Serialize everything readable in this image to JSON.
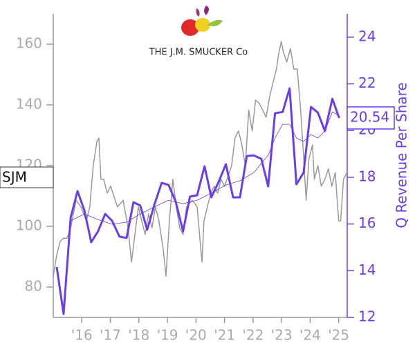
{
  "chart_data": {
    "type": "line",
    "logo": "THE J.M. SMUCKER Co",
    "y2label": "Q Revenue Per Share",
    "xlim": [
      2015.0,
      2025.3
    ],
    "xticks": [
      {
        "value": 2016,
        "label": "'16"
      },
      {
        "value": 2017,
        "label": "'17"
      },
      {
        "value": 2018,
        "label": "'18"
      },
      {
        "value": 2019,
        "label": "'19"
      },
      {
        "value": 2020,
        "label": "'20"
      },
      {
        "value": 2021,
        "label": "'21"
      },
      {
        "value": 2022,
        "label": "'22"
      },
      {
        "value": 2023,
        "label": "'23"
      },
      {
        "value": 2024,
        "label": "'24"
      },
      {
        "value": 2025,
        "label": "'25"
      }
    ],
    "ylim": [
      70,
      170
    ],
    "yticks": [
      80,
      100,
      120,
      140,
      160
    ],
    "y2lim": [
      12,
      25
    ],
    "y2ticks": [
      12,
      14,
      16,
      18,
      20,
      22,
      24
    ],
    "series": [
      {
        "name": "SJM",
        "color": "#999999",
        "axis": "y",
        "x": [
          2015.0,
          2015.12,
          2015.24,
          2015.36,
          2015.48,
          2015.61,
          2015.8,
          2015.97,
          2016.16,
          2016.28,
          2016.4,
          2016.53,
          2016.6,
          2016.67,
          2016.77,
          2016.89,
          2017.01,
          2017.13,
          2017.25,
          2017.45,
          2017.62,
          2017.74,
          2017.86,
          2017.98,
          2018.1,
          2018.22,
          2018.34,
          2018.46,
          2018.58,
          2018.7,
          2018.85,
          2018.95,
          2019.07,
          2019.19,
          2019.31,
          2019.43,
          2019.55,
          2019.67,
          2019.87,
          2020.04,
          2020.21,
          2020.28,
          2020.4,
          2020.52,
          2020.64,
          2020.76,
          2020.88,
          2021.0,
          2021.13,
          2021.25,
          2021.37,
          2021.49,
          2021.61,
          2021.73,
          2021.85,
          2021.97,
          2022.09,
          2022.22,
          2022.34,
          2022.46,
          2022.58,
          2022.7,
          2022.82,
          2022.89,
          2022.99,
          2023.06,
          2023.18,
          2023.31,
          2023.43,
          2023.55,
          2023.67,
          2023.79,
          2023.86,
          2023.96,
          2024.08,
          2024.15,
          2024.27,
          2024.39,
          2024.52,
          2024.64,
          2024.76,
          2024.88,
          2025.0,
          2025.07,
          2025.17,
          2025.29
        ],
        "values": [
          83.6,
          90.5,
          95.0,
          96.1,
          96.1,
          99.5,
          108.6,
          106.4,
          101.8,
          106.4,
          120.0,
          128.0,
          129.1,
          115.5,
          115.5,
          110.9,
          113.2,
          109.8,
          106.4,
          108.6,
          99.5,
          88.2,
          97.3,
          106.4,
          101.8,
          97.3,
          104.1,
          99.5,
          106.4,
          101.8,
          92.7,
          83.6,
          101.8,
          115.5,
          106.4,
          99.5,
          97.3,
          106.4,
          108.6,
          106.4,
          88.2,
          101.8,
          106.4,
          110.9,
          113.2,
          110.9,
          115.5,
          113.2,
          116.6,
          120.0,
          129.1,
          131.4,
          126.8,
          120.0,
          138.2,
          131.4,
          141.6,
          140.5,
          138.2,
          135.9,
          142.7,
          147.3,
          151.8,
          156.4,
          160.9,
          157.5,
          154.1,
          158.6,
          151.8,
          151.8,
          138.2,
          120.0,
          108.6,
          122.3,
          126.8,
          115.5,
          120.0,
          113.2,
          115.5,
          118.9,
          113.2,
          117.7,
          101.8,
          101.8,
          115.5,
          117.7
        ]
      },
      {
        "color": "#6a3de8",
        "axis": "y2",
        "x": [
          2015.12,
          2015.36,
          2015.61,
          2015.85,
          2016.09,
          2016.33,
          2016.57,
          2016.82,
          2017.06,
          2017.32,
          2017.57,
          2017.81,
          2018.05,
          2018.29,
          2018.54,
          2018.8,
          2019.04,
          2019.29,
          2019.55,
          2019.79,
          2020.04,
          2020.3,
          2020.54,
          2020.79,
          2021.05,
          2021.3,
          2021.54,
          2021.78,
          2022.02,
          2022.29,
          2022.53,
          2022.77,
          2023.04,
          2023.28,
          2023.52,
          2023.77,
          2024.03,
          2024.27,
          2024.52,
          2024.78,
          2025.02
        ],
        "values": [
          14.16,
          12.15,
          16.28,
          17.41,
          16.58,
          15.22,
          15.69,
          16.43,
          16.14,
          15.46,
          15.4,
          16.93,
          16.79,
          15.75,
          16.82,
          17.76,
          17.67,
          16.96,
          15.69,
          17.17,
          17.23,
          18.47,
          17.14,
          17.79,
          18.56,
          17.14,
          17.14,
          18.91,
          18.94,
          18.79,
          17.61,
          20.74,
          20.8,
          21.81,
          17.7,
          18.2,
          21.01,
          20.77,
          19.98,
          21.36,
          20.54
        ]
      },
      {
        "color": "#6a3de8",
        "axis": "y2",
        "x": [
          2015.61,
          2016.09,
          2016.57,
          2017.06,
          2017.57,
          2018.05,
          2018.54,
          2019.04,
          2019.55,
          2020.04,
          2020.54,
          2021.05,
          2021.54,
          2022.02,
          2022.53,
          2022.77,
          2023.04,
          2023.28,
          2023.52,
          2023.77,
          2024.03,
          2024.27,
          2024.52,
          2024.78,
          2025.02
        ],
        "values": [
          16.14,
          16.43,
          16.19,
          15.99,
          16.08,
          16.43,
          16.73,
          17.02,
          16.87,
          17.02,
          17.32,
          17.67,
          17.85,
          18.2,
          18.94,
          19.68,
          20.27,
          20.27,
          19.68,
          19.53,
          19.83,
          19.68,
          19.98,
          20.8,
          20.63
        ]
      }
    ]
  }
}
